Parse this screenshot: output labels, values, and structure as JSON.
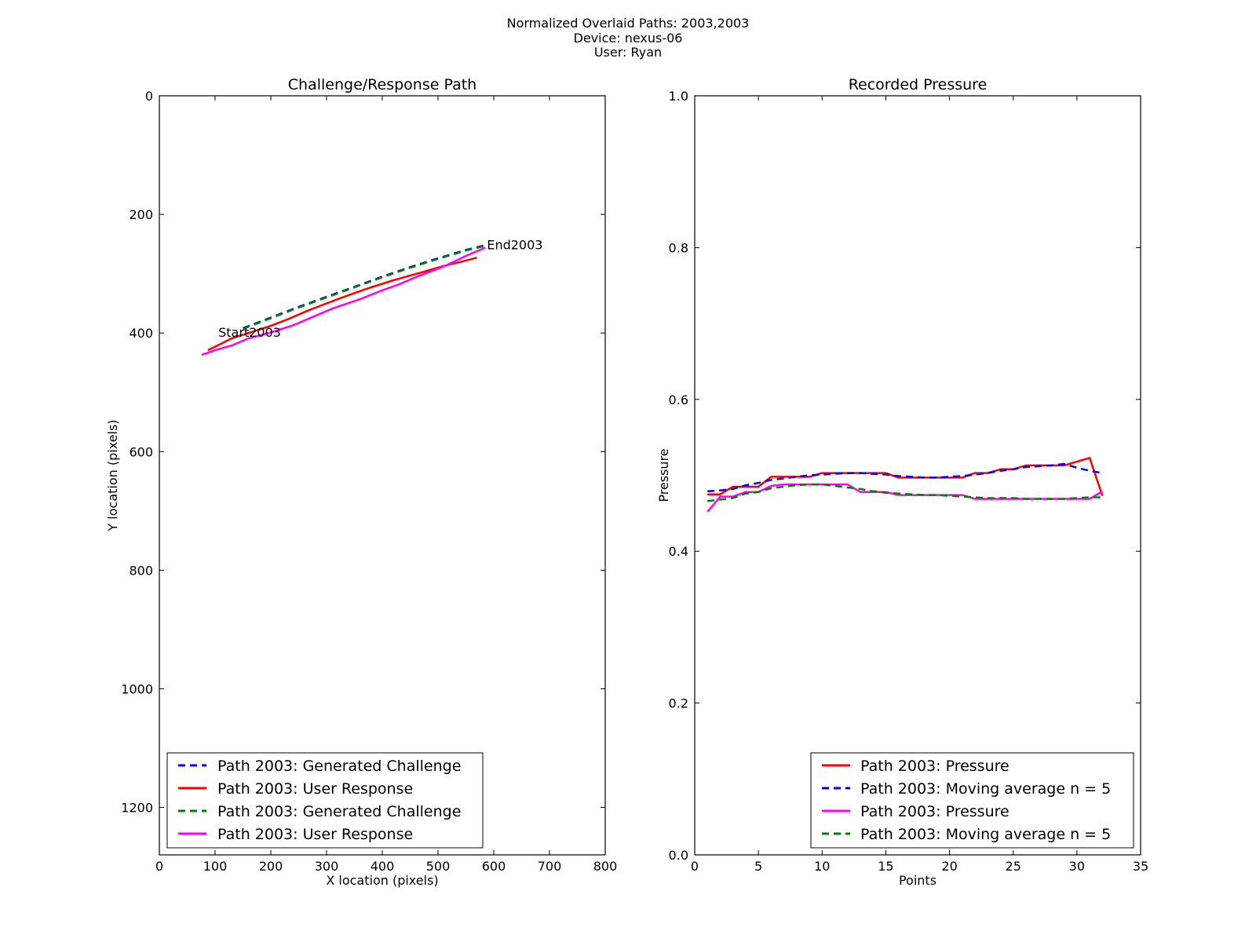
{
  "figure": {
    "suptitle_lines": [
      "Normalized Overlaid Paths: 2003,2003",
      "Device: nexus-06",
      "User: Ryan"
    ]
  },
  "chart_data": [
    {
      "type": "line",
      "title": "Challenge/Response Path",
      "xlabel": "X location (pixels)",
      "ylabel": "Y location (pixels)",
      "xlim": [
        0,
        800
      ],
      "ylim": [
        1280,
        0
      ],
      "y_inverted": true,
      "xticks": [
        0,
        100,
        200,
        300,
        400,
        500,
        600,
        700,
        800
      ],
      "yticks": [
        0,
        200,
        400,
        600,
        800,
        1000,
        1200
      ],
      "legend_position": "lower-left",
      "series": [
        {
          "name": "Path 2003: Generated Challenge",
          "color": "#0000ff",
          "dash": "dashed",
          "x": [
            150,
            200,
            250,
            300,
            350,
            400,
            450,
            500,
            550,
            585
          ],
          "y": [
            392,
            374,
            356,
            339,
            322,
            305,
            289,
            274,
            260,
            252
          ]
        },
        {
          "name": "Path 2003: User Response",
          "color": "#ff0000",
          "dash": "solid",
          "x": [
            87,
            100,
            130,
            160,
            200,
            230,
            270,
            320,
            370,
            420,
            470,
            510,
            545,
            570
          ],
          "y": [
            429,
            423,
            409,
            400,
            388,
            377,
            361,
            343,
            326,
            311,
            298,
            287,
            279,
            273
          ]
        },
        {
          "name": "Path 2003: Generated Challenge",
          "color": "#008000",
          "dash": "dashed",
          "x": [
            150,
            200,
            250,
            300,
            350,
            400,
            450,
            500,
            550,
            585
          ],
          "y": [
            393,
            375,
            357,
            340,
            323,
            306,
            290,
            275,
            261,
            253
          ]
        },
        {
          "name": "Path 2003: User Response",
          "color": "#ff00ff",
          "dash": "solid",
          "x": [
            76,
            100,
            130,
            160,
            200,
            240,
            270,
            310,
            360,
            400,
            430,
            470,
            510,
            550,
            585
          ],
          "y": [
            437,
            429,
            421,
            409,
            399,
            387,
            375,
            359,
            343,
            328,
            318,
            302,
            288,
            270,
            256
          ]
        }
      ],
      "annotations": [
        {
          "text": "Start2003",
          "x": 103,
          "y": 400
        },
        {
          "text": "End2003",
          "x": 585,
          "y": 252
        }
      ]
    },
    {
      "type": "line",
      "title": "Recorded Pressure",
      "xlabel": "Points",
      "ylabel": "Pressure",
      "xlim": [
        0,
        35
      ],
      "ylim": [
        0.0,
        1.0
      ],
      "xticks": [
        0,
        5,
        10,
        15,
        20,
        25,
        30,
        35
      ],
      "yticks": [
        "0.0",
        "0.2",
        "0.4",
        "0.6",
        "0.8",
        "1.0"
      ],
      "legend_position": "lower-right",
      "series": [
        {
          "name": "Path 2003: Pressure",
          "color": "#ff0000",
          "dash": "solid",
          "x": [
            1,
            2,
            3,
            4,
            5,
            6,
            7,
            8,
            9,
            10,
            11,
            12,
            13,
            14,
            15,
            16,
            17,
            18,
            19,
            20,
            21,
            22,
            23,
            24,
            25,
            26,
            27,
            28,
            29,
            30,
            31,
            32
          ],
          "y": [
            0.475,
            0.475,
            0.485,
            0.485,
            0.485,
            0.498,
            0.498,
            0.498,
            0.498,
            0.503,
            0.503,
            0.503,
            0.503,
            0.503,
            0.503,
            0.497,
            0.497,
            0.497,
            0.497,
            0.497,
            0.497,
            0.503,
            0.503,
            0.508,
            0.508,
            0.513,
            0.513,
            0.513,
            0.513,
            0.518,
            0.523,
            0.473
          ]
        },
        {
          "name": "Path 2003: Moving average n = 5",
          "color": "#0000ff",
          "dash": "dashed",
          "x": [
            1,
            2,
            3,
            4,
            5,
            6,
            7,
            8,
            9,
            10,
            11,
            12,
            13,
            14,
            15,
            16,
            17,
            18,
            19,
            20,
            21,
            22,
            23,
            24,
            25,
            26,
            27,
            28,
            29,
            30,
            31,
            32
          ],
          "y": [
            0.479,
            0.48,
            0.482,
            0.487,
            0.49,
            0.494,
            0.496,
            0.498,
            0.5,
            0.501,
            0.502,
            0.503,
            0.503,
            0.502,
            0.501,
            0.499,
            0.498,
            0.497,
            0.497,
            0.498,
            0.499,
            0.501,
            0.503,
            0.506,
            0.508,
            0.511,
            0.512,
            0.513,
            0.515,
            0.51,
            0.506,
            0.503
          ]
        },
        {
          "name": "Path 2003: Pressure",
          "color": "#ff00ff",
          "dash": "solid",
          "x": [
            1,
            2,
            3,
            4,
            5,
            6,
            7,
            8,
            9,
            10,
            11,
            12,
            13,
            14,
            15,
            16,
            17,
            18,
            19,
            20,
            21,
            22,
            23,
            24,
            25,
            26,
            27,
            28,
            29,
            30,
            31,
            32
          ],
          "y": [
            0.452,
            0.472,
            0.472,
            0.478,
            0.478,
            0.486,
            0.488,
            0.488,
            0.488,
            0.488,
            0.488,
            0.488,
            0.478,
            0.478,
            0.478,
            0.474,
            0.474,
            0.474,
            0.474,
            0.474,
            0.474,
            0.469,
            0.469,
            0.469,
            0.469,
            0.469,
            0.469,
            0.469,
            0.469,
            0.469,
            0.469,
            0.479
          ]
        },
        {
          "name": "Path 2003: Moving average n = 5",
          "color": "#008000",
          "dash": "dashed",
          "x": [
            1,
            2,
            3,
            4,
            5,
            6,
            7,
            8,
            9,
            10,
            11,
            12,
            13,
            14,
            15,
            16,
            17,
            18,
            19,
            20,
            21,
            22,
            23,
            24,
            25,
            26,
            27,
            28,
            29,
            30,
            31,
            32
          ],
          "y": [
            0.466,
            0.468,
            0.47,
            0.476,
            0.478,
            0.483,
            0.485,
            0.487,
            0.488,
            0.488,
            0.486,
            0.484,
            0.482,
            0.479,
            0.477,
            0.476,
            0.475,
            0.474,
            0.474,
            0.473,
            0.472,
            0.471,
            0.47,
            0.47,
            0.47,
            0.469,
            0.469,
            0.469,
            0.469,
            0.47,
            0.471,
            0.471
          ]
        }
      ]
    }
  ]
}
